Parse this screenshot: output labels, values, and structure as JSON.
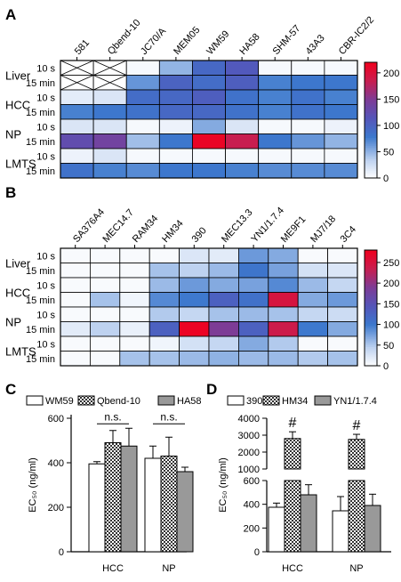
{
  "chart_data": [
    {
      "panel": "A",
      "type": "heatmap",
      "columns": [
        "581",
        "Qbend-10",
        "JC70/A",
        "MEM05",
        "WM59",
        "HA58",
        "SHM-57",
        "43A3",
        "CBR-IC2/2"
      ],
      "groups": [
        "Liver",
        "HCC",
        "NP",
        "LMTS"
      ],
      "times": [
        "10 s",
        "15 min"
      ],
      "missing_marker": "X",
      "values": [
        [
          null,
          null,
          5,
          50,
          95,
          110,
          5,
          5,
          5
        ],
        [
          null,
          null,
          65,
          100,
          90,
          105,
          75,
          80,
          80
        ],
        [
          15,
          20,
          90,
          95,
          105,
          85,
          75,
          85,
          75
        ],
        [
          75,
          80,
          85,
          95,
          95,
          85,
          75,
          85,
          80
        ],
        [
          20,
          20,
          5,
          10,
          55,
          20,
          5,
          5,
          10
        ],
        [
          125,
          140,
          45,
          80,
          215,
          185,
          80,
          65,
          50
        ],
        [
          10,
          20,
          5,
          5,
          5,
          5,
          5,
          5,
          5
        ],
        [
          85,
          75,
          70,
          80,
          80,
          75,
          70,
          70,
          70
        ]
      ],
      "colorbar": {
        "min": 0,
        "max": 220,
        "ticks": [
          0,
          50,
          100,
          150,
          200
        ]
      }
    },
    {
      "panel": "B",
      "type": "heatmap",
      "columns": [
        "SA376A4",
        "MEC14.7",
        "RAM34",
        "HM34",
        "390",
        "MEC13.3",
        "YN1/1.7.4",
        "ME9F1",
        "MJ7/18",
        "3C4"
      ],
      "groups": [
        "Liver",
        "HCC",
        "NP",
        "LMTS"
      ],
      "times": [
        "10 s",
        "15 min"
      ],
      "values": [
        [
          5,
          5,
          5,
          5,
          25,
          20,
          80,
          70,
          5,
          5
        ],
        [
          5,
          5,
          5,
          55,
          45,
          60,
          105,
          75,
          30,
          25
        ],
        [
          5,
          5,
          5,
          60,
          80,
          70,
          75,
          90,
          60,
          40
        ],
        [
          5,
          55,
          10,
          90,
          100,
          130,
          110,
          250,
          70,
          80
        ],
        [
          5,
          5,
          5,
          50,
          40,
          55,
          60,
          55,
          40,
          35
        ],
        [
          20,
          45,
          15,
          130,
          275,
          190,
          130,
          240,
          100,
          70
        ],
        [
          5,
          5,
          5,
          10,
          30,
          40,
          70,
          50,
          5,
          5
        ],
        [
          5,
          5,
          55,
          55,
          60,
          65,
          60,
          60,
          50,
          55
        ]
      ],
      "colorbar": {
        "min": 0,
        "max": 280,
        "ticks": [
          0,
          50,
          100,
          150,
          200,
          250
        ]
      }
    },
    {
      "panel": "C",
      "type": "bar",
      "categories": [
        "HCC",
        "NP"
      ],
      "series": [
        {
          "name": "WM59",
          "values": [
            395,
            420
          ],
          "errors": [
            10,
            55
          ]
        },
        {
          "name": "Qbend-10",
          "values": [
            490,
            430
          ],
          "errors": [
            55,
            85
          ]
        },
        {
          "name": "HA58",
          "values": [
            475,
            360
          ],
          "errors": [
            80,
            20
          ]
        }
      ],
      "ylabel": "EC₅₀ (ng/ml)",
      "ylim": [
        0,
        600
      ],
      "yticks": [
        0,
        200,
        400,
        600
      ],
      "annotations": [
        "n.s.",
        "n.s."
      ]
    },
    {
      "panel": "D",
      "type": "bar",
      "categories": [
        "HCC",
        "NP"
      ],
      "series": [
        {
          "name": "390",
          "values": [
            375,
            345
          ],
          "errors": [
            35,
            120
          ]
        },
        {
          "name": "HM34",
          "values": [
            2800,
            2750
          ],
          "errors": [
            400,
            300
          ]
        },
        {
          "name": "YN1/1.7.4",
          "values": [
            480,
            390
          ],
          "errors": [
            85,
            95
          ]
        }
      ],
      "ylabel": "EC₅₀ (ng/ml)",
      "broken_axis": {
        "lower": [
          0,
          600
        ],
        "upper": [
          1000,
          4000
        ]
      },
      "yticks_lower": [
        0,
        200,
        400,
        600
      ],
      "yticks_upper": [
        1000,
        2000,
        3000,
        4000
      ],
      "annotations": [
        "#",
        "#"
      ]
    }
  ]
}
